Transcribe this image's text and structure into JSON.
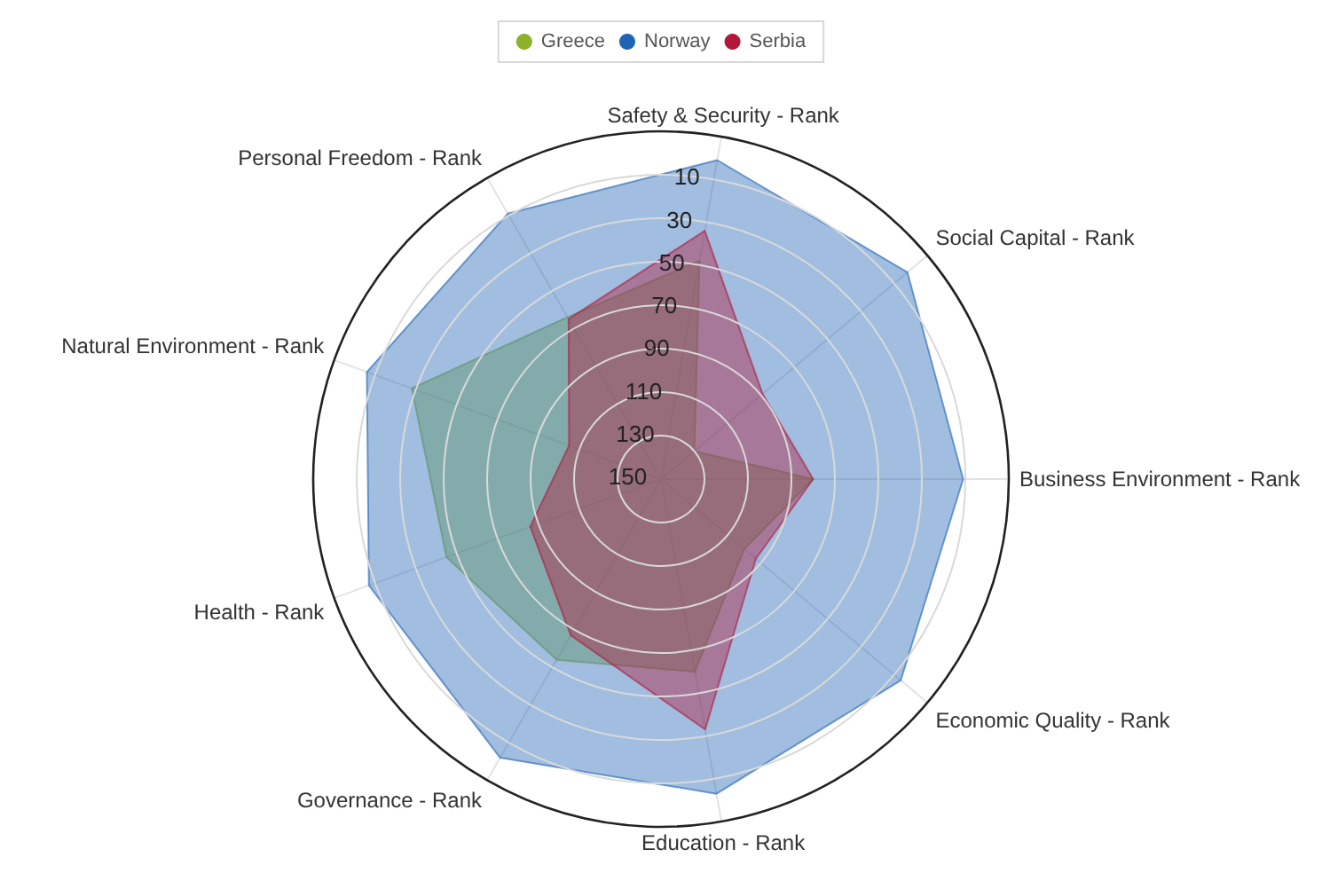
{
  "chart_data": {
    "type": "radar",
    "categories": [
      "Safety & Security - Rank",
      "Social Capital - Rank",
      "Business Environment - Rank",
      "Economic Quality - Rank",
      "Education - Rank",
      "Governance - Rank",
      "Health - Rank",
      "Natural Environment - Rank",
      "Personal Freedom - Rank"
    ],
    "series": [
      {
        "name": "Greece",
        "color": "#8bb22a",
        "values": [
          48,
          130,
          80,
          100,
          60,
          54,
          45,
          28,
          64
        ]
      },
      {
        "name": "Norway",
        "color": "#1f63b5",
        "values": [
          1,
          2,
          11,
          6,
          3,
          2,
          7,
          6,
          9
        ]
      },
      {
        "name": "Serbia",
        "color": "#b2183a",
        "values": [
          34,
          89,
          80,
          93,
          33,
          67,
          86,
          105,
          65
        ]
      }
    ],
    "ylim": [
      150,
      -10
    ],
    "yticks": [
      10,
      30,
      50,
      70,
      90,
      110,
      130,
      150
    ],
    "grid": true,
    "legend": "top"
  }
}
